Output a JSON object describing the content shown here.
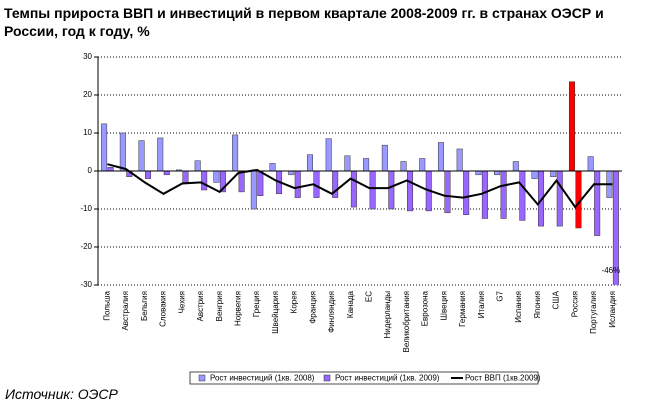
{
  "chart_data": {
    "type": "bar_line",
    "title": "Темпы прироста ВВП и инвестиций в первом квартале 2008-2009 гг. в странах ОЭСР и России, год к году, %",
    "source": "Источник: ОЭСР",
    "categories": [
      "Польша",
      "Австралия",
      "Бельгия",
      "Словакия",
      "Чехия",
      "Австрия",
      "Венгрия",
      "Норвегия",
      "Греция",
      "Швейцария",
      "Корея",
      "Франция",
      "Финляндия",
      "Канада",
      "ЕС",
      "Нидерланды",
      "Великобритания",
      "Еврозона",
      "Швеция",
      "Германия",
      "Италия",
      "G7",
      "Испания",
      "Япония",
      "США",
      "Россия",
      "Португалия",
      "Исландия"
    ],
    "series": [
      {
        "name": "Рост инвестиций (1кв. 2008)",
        "kind": "bar",
        "color": "#9999ff",
        "values": [
          12.4,
          10,
          8,
          8.7,
          0.3,
          2.7,
          -3,
          9.5,
          -10,
          2,
          -1,
          4.3,
          8.5,
          4,
          3.3,
          6.8,
          2.5,
          3.3,
          7.5,
          5.8,
          -1,
          -1,
          2.5,
          -2,
          -1.5,
          23.5,
          3.8,
          -7
        ]
      },
      {
        "name": "Рост инвестиций (1кв. 2009)",
        "kind": "bar",
        "color": "#9966ff",
        "values": [
          1,
          -1.5,
          -2,
          -1,
          -3,
          -5,
          -5.5,
          -5.5,
          -6.5,
          -6,
          -7,
          -7,
          -7,
          -9.5,
          -10,
          -10,
          -10.5,
          -10.5,
          -11,
          -11.5,
          -12.5,
          -12.5,
          -13,
          -14.5,
          -14.5,
          -15,
          -17,
          -46
        ],
        "value_labels": [
          null,
          null,
          null,
          null,
          null,
          null,
          null,
          null,
          null,
          null,
          null,
          null,
          null,
          null,
          null,
          null,
          null,
          null,
          null,
          null,
          null,
          null,
          null,
          null,
          null,
          null,
          null,
          "-46%"
        ]
      },
      {
        "name": "Рост ВВП (1кв.2009)",
        "kind": "line",
        "color": "#000000",
        "values": [
          1.8,
          0.5,
          -3,
          -6,
          -3.3,
          -3,
          -5.5,
          -0.5,
          0.3,
          -2.5,
          -4.5,
          -3.5,
          -6,
          -2,
          -4.5,
          -4.5,
          -2.5,
          -4.8,
          -6.5,
          -7,
          -6,
          -4,
          -3,
          -8.8,
          -2.5,
          -9.5,
          -3.5,
          -3.5
        ]
      }
    ],
    "highlight_category": "Россия",
    "highlight_color": "#ff0000",
    "ylim": [
      -30,
      30
    ],
    "yticks": [
      -30,
      -20,
      -10,
      0,
      10,
      20,
      30
    ],
    "grid": true,
    "grid_style": "dotted"
  }
}
